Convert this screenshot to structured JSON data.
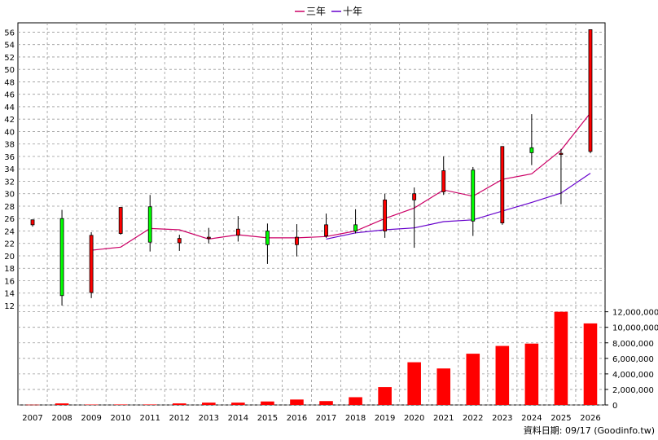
{
  "chart_data": [
    {
      "type": "candlestick",
      "legend": [
        "三年",
        "十年"
      ],
      "legend_position": "top-center",
      "categories": [
        "2007",
        "2008",
        "2009",
        "2010",
        "2011",
        "2012",
        "2013",
        "2014",
        "2015",
        "2016",
        "2017",
        "2018",
        "2019",
        "2020",
        "2021",
        "2022",
        "2023",
        "2024",
        "2025",
        "2026"
      ],
      "ohlc": [
        {
          "open": 25.0,
          "high": 25.8,
          "low": 24.7,
          "close": 25.8
        },
        {
          "open": 26.0,
          "high": 27.4,
          "low": 12.0,
          "close": 13.6
        },
        {
          "open": 14.1,
          "high": 23.8,
          "low": 13.2,
          "close": 23.3
        },
        {
          "open": 23.6,
          "high": 27.8,
          "low": 23.4,
          "close": 27.8
        },
        {
          "open": 27.9,
          "high": 29.8,
          "low": 20.7,
          "close": 22.2
        },
        {
          "open": 22.1,
          "high": 23.4,
          "low": 20.8,
          "close": 22.8
        },
        {
          "open": 22.8,
          "high": 24.5,
          "low": 22.0,
          "close": 23.0
        },
        {
          "open": 23.3,
          "high": 26.4,
          "low": 22.3,
          "close": 24.3
        },
        {
          "open": 24.0,
          "high": 25.2,
          "low": 18.7,
          "close": 21.8
        },
        {
          "open": 21.8,
          "high": 25.1,
          "low": 19.9,
          "close": 23.0
        },
        {
          "open": 23.2,
          "high": 26.8,
          "low": 22.9,
          "close": 25.0
        },
        {
          "open": 25.0,
          "high": 27.5,
          "low": 23.6,
          "close": 24.0
        },
        {
          "open": 24.0,
          "high": 30.0,
          "low": 22.9,
          "close": 29.0
        },
        {
          "open": 29.0,
          "high": 31.0,
          "low": 21.3,
          "close": 30.0
        },
        {
          "open": 30.3,
          "high": 36.0,
          "low": 29.8,
          "close": 33.7
        },
        {
          "open": 33.8,
          "high": 34.3,
          "low": 23.2,
          "close": 25.6
        },
        {
          "open": 25.3,
          "high": 37.6,
          "low": 25.0,
          "close": 37.6
        },
        {
          "open": 37.4,
          "high": 42.8,
          "low": 34.6,
          "close": 36.6
        },
        {
          "open": 36.5,
          "high": 37.2,
          "low": 28.3,
          "close": 36.5
        },
        {
          "open": 36.8,
          "high": 56.4,
          "low": 36.5,
          "close": 56.4
        }
      ],
      "up_color": "#ff0000",
      "down_color": "#00ff00",
      "series": [
        {
          "name": "三年",
          "color": "#cc0066",
          "values": [
            null,
            null,
            20.9,
            21.4,
            24.4,
            24.2,
            22.7,
            23.4,
            22.9,
            22.9,
            23.1,
            24.0,
            26.0,
            27.7,
            30.6,
            29.6,
            32.3,
            33.2,
            37.0,
            43.0
          ]
        },
        {
          "name": "十年",
          "color": "#6600cc",
          "values": [
            null,
            null,
            null,
            null,
            null,
            null,
            null,
            null,
            null,
            null,
            22.7,
            23.7,
            24.2,
            24.5,
            25.5,
            25.8,
            27.2,
            28.6,
            30.1,
            33.3
          ]
        }
      ],
      "y_ticks": [
        "12",
        "14",
        "16",
        "18",
        "20",
        "22",
        "24",
        "26",
        "28",
        "30",
        "32",
        "34",
        "36",
        "38",
        "40",
        "42",
        "44",
        "46",
        "48",
        "50",
        "52",
        "54",
        "56"
      ],
      "ylim": [
        12,
        57.5
      ],
      "grid": true
    },
    {
      "type": "bar",
      "categories": [
        "2007",
        "2008",
        "2009",
        "2010",
        "2011",
        "2012",
        "2013",
        "2014",
        "2015",
        "2016",
        "2017",
        "2018",
        "2019",
        "2020",
        "2021",
        "2022",
        "2023",
        "2024",
        "2025",
        "2026"
      ],
      "values": [
        30000,
        200000,
        50000,
        60000,
        60000,
        200000,
        300000,
        300000,
        450000,
        700000,
        500000,
        1000000,
        2300000,
        5500000,
        4700000,
        6600000,
        7600000,
        7900000,
        12000000,
        10500000
      ],
      "bar_color": "#ff0000",
      "y_ticks": [
        "0",
        "2,000,000",
        "4,000,000",
        "6,000,000",
        "8,000,000",
        "10,000,000",
        "12,000,000"
      ],
      "ylim": [
        0,
        12800000
      ],
      "grid": true
    }
  ],
  "footer": "資料日期: 09/17 (Goodinfo.tw)"
}
